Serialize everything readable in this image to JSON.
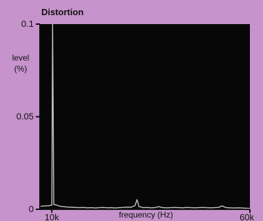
{
  "chart_data": {
    "type": "line",
    "title": "Distortion",
    "xlabel": "frequency (Hz)",
    "ylabel_line1": "level",
    "ylabel_line2": "(%)",
    "x_tick_labels": [
      "10k",
      "60k"
    ],
    "y_tick_labels": [
      "0.1",
      "0.05",
      "0"
    ],
    "x_ticks": [
      10000,
      60000
    ],
    "y_ticks": [
      0.1,
      0.05,
      0
    ],
    "xlim": [
      7000,
      60000
    ],
    "ylim": [
      0,
      0.1
    ],
    "grid": false,
    "colors": {
      "background": "#c693cc",
      "plot_area": "#070707",
      "line": "#c6c6c6",
      "axis": "#111111"
    },
    "series": [
      {
        "x": [
          7000,
          8000,
          9000,
          10000,
          10200,
          10500,
          11000,
          12000,
          13000,
          14000,
          15000,
          16000,
          17000,
          18000,
          19000,
          20000,
          21000,
          22000,
          23000,
          24000,
          25000,
          26000,
          27000,
          28000,
          29000,
          30000,
          31000,
          31500,
          32000,
          33000,
          34000,
          35000,
          36000,
          37000,
          38000,
          39000,
          40000,
          41000,
          42000,
          43000,
          44000,
          45000,
          46000,
          47000,
          48000,
          49000,
          50000,
          51000,
          52000,
          53000,
          54000,
          55000,
          56000,
          57000,
          58000,
          59000,
          60000
        ],
        "values": [
          0.0016,
          0.0018,
          0.0019,
          0.0022,
          0.1,
          0.0026,
          0.0024,
          0.0017,
          0.0014,
          0.0012,
          0.0011,
          0.001,
          0.0009,
          0.001,
          0.0008,
          0.0009,
          0.0007,
          0.0009,
          0.001,
          0.0008,
          0.0009,
          0.0007,
          0.0009,
          0.001,
          0.0012,
          0.0011,
          0.002,
          0.0052,
          0.0015,
          0.0009,
          0.001,
          0.0008,
          0.0009,
          0.0014,
          0.0009,
          0.0008,
          0.0009,
          0.001,
          0.0009,
          0.0008,
          0.001,
          0.0009,
          0.0008,
          0.0009,
          0.001,
          0.0009,
          0.0008,
          0.0009,
          0.001,
          0.0018,
          0.0009,
          0.0008,
          0.0007,
          0.0008,
          0.0007,
          0.0006,
          0.0005
        ]
      }
    ]
  }
}
